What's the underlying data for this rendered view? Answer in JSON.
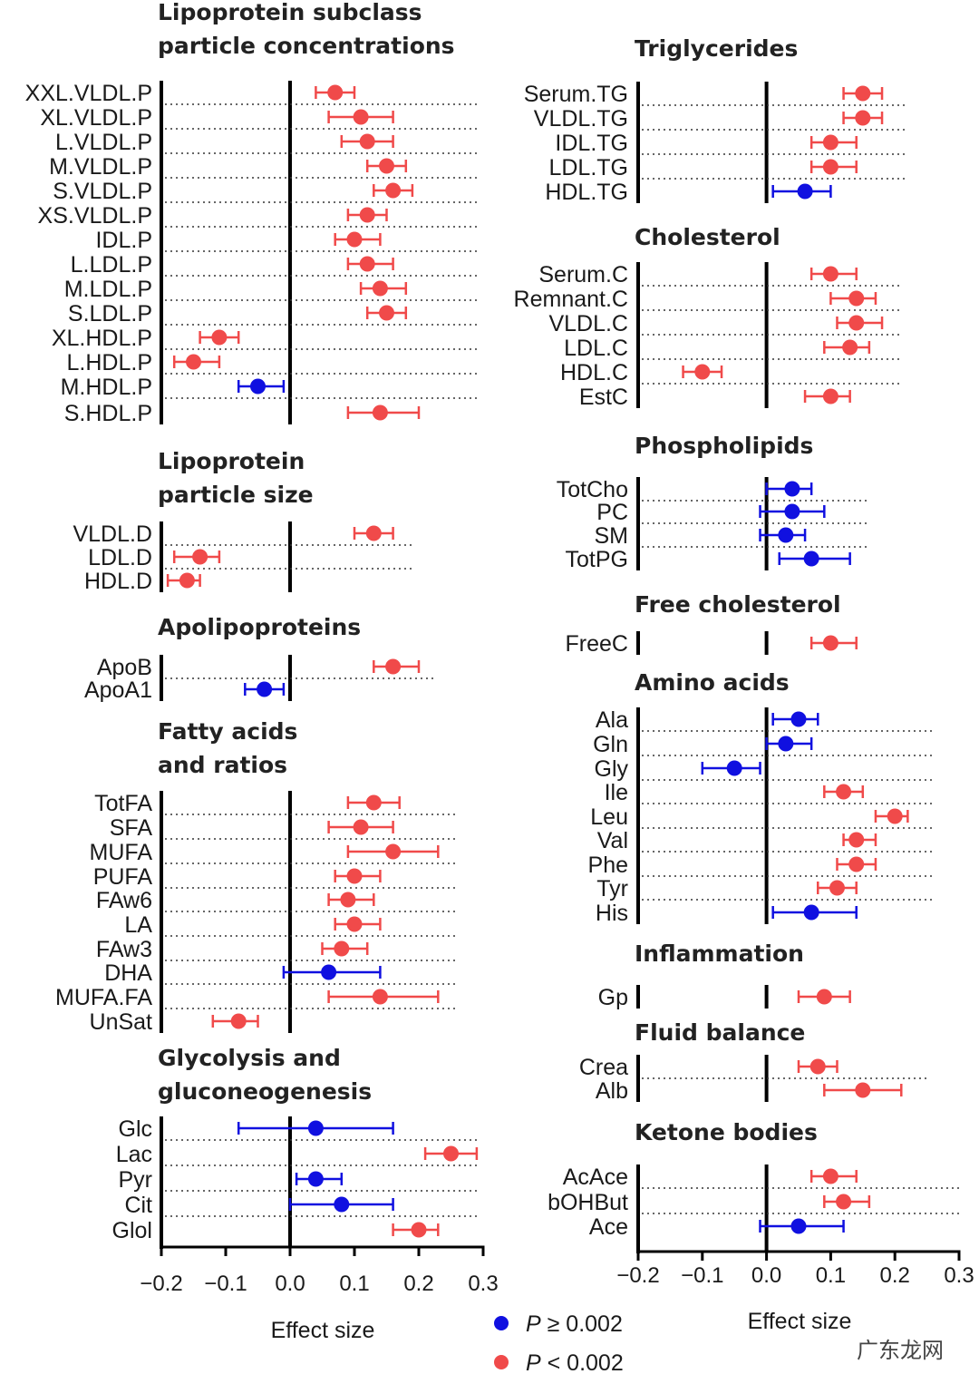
{
  "chart_data": {
    "type": "forest",
    "colors": {
      "not_significant": "#1010e0",
      "significant": "#f04a4a"
    },
    "legend": {
      "placement": "bottom-center",
      "entries": [
        {
          "p_letter": "P",
          "rest": " ≥ 0.002",
          "color": "#1010e0"
        },
        {
          "p_letter": "P",
          "rest": " < 0.002",
          "color": "#f04a4a"
        }
      ]
    },
    "columns": [
      {
        "xlim": [
          -0.2,
          0.3
        ],
        "ticks": [
          "−0.2",
          "−0.1",
          "0.0",
          "0.1",
          "0.2",
          "0.3"
        ],
        "tick_values": [
          -0.2,
          -0.1,
          0.0,
          0.1,
          0.2,
          0.3
        ],
        "xlabel": "Effect size",
        "panels": [
          {
            "title": [
              "Lipoprotein subclass",
              "particle concentrations"
            ],
            "rows": [
              {
                "label": "XXL.VLDL.P",
                "est": 0.07,
                "lo": 0.04,
                "hi": 0.1,
                "sig": true
              },
              {
                "label": "XL.VLDL.P",
                "est": 0.11,
                "lo": 0.06,
                "hi": 0.16,
                "sig": true
              },
              {
                "label": "L.VLDL.P",
                "est": 0.12,
                "lo": 0.08,
                "hi": 0.16,
                "sig": true
              },
              {
                "label": "M.VLDL.P",
                "est": 0.15,
                "lo": 0.12,
                "hi": 0.18,
                "sig": true
              },
              {
                "label": "S.VLDL.P",
                "est": 0.16,
                "lo": 0.13,
                "hi": 0.19,
                "sig": true
              },
              {
                "label": "XS.VLDL.P",
                "est": 0.12,
                "lo": 0.09,
                "hi": 0.15,
                "sig": true
              },
              {
                "label": "IDL.P",
                "est": 0.1,
                "lo": 0.07,
                "hi": 0.14,
                "sig": true
              },
              {
                "label": "L.LDL.P",
                "est": 0.12,
                "lo": 0.09,
                "hi": 0.16,
                "sig": true
              },
              {
                "label": "M.LDL.P",
                "est": 0.14,
                "lo": 0.11,
                "hi": 0.18,
                "sig": true
              },
              {
                "label": "S.LDL.P",
                "est": 0.15,
                "lo": 0.12,
                "hi": 0.18,
                "sig": true
              },
              {
                "label": "XL.HDL.P",
                "est": -0.11,
                "lo": -0.14,
                "hi": -0.08,
                "sig": true
              },
              {
                "label": "L.HDL.P",
                "est": -0.15,
                "lo": -0.18,
                "hi": -0.11,
                "sig": true
              },
              {
                "label": "M.HDL.P",
                "est": -0.05,
                "lo": -0.08,
                "hi": -0.01,
                "sig": false
              },
              {
                "label": "S.HDL.P",
                "est": 0.14,
                "lo": 0.09,
                "hi": 0.2,
                "sig": true
              }
            ]
          },
          {
            "title": [
              "Lipoprotein",
              "particle size"
            ],
            "rows": [
              {
                "label": "VLDL.D",
                "est": 0.13,
                "lo": 0.1,
                "hi": 0.16,
                "sig": true
              },
              {
                "label": "LDL.D",
                "est": -0.14,
                "lo": -0.18,
                "hi": -0.11,
                "sig": true
              },
              {
                "label": "HDL.D",
                "est": -0.16,
                "lo": -0.19,
                "hi": -0.14,
                "sig": true
              }
            ]
          },
          {
            "title": [
              "Apolipoproteins"
            ],
            "rows": [
              {
                "label": "ApoB",
                "est": 0.16,
                "lo": 0.13,
                "hi": 0.2,
                "sig": true
              },
              {
                "label": "ApoA1",
                "est": -0.04,
                "lo": -0.07,
                "hi": -0.01,
                "sig": false
              }
            ]
          },
          {
            "title": [
              "Fatty acids",
              "and ratios"
            ],
            "rows": [
              {
                "label": "TotFA",
                "est": 0.13,
                "lo": 0.09,
                "hi": 0.17,
                "sig": true
              },
              {
                "label": "SFA",
                "est": 0.11,
                "lo": 0.06,
                "hi": 0.16,
                "sig": true
              },
              {
                "label": "MUFA",
                "est": 0.16,
                "lo": 0.09,
                "hi": 0.23,
                "sig": true
              },
              {
                "label": "PUFA",
                "est": 0.1,
                "lo": 0.07,
                "hi": 0.14,
                "sig": true
              },
              {
                "label": "FAw6",
                "est": 0.09,
                "lo": 0.06,
                "hi": 0.13,
                "sig": true
              },
              {
                "label": "LA",
                "est": 0.1,
                "lo": 0.07,
                "hi": 0.14,
                "sig": true
              },
              {
                "label": "FAw3",
                "est": 0.08,
                "lo": 0.05,
                "hi": 0.12,
                "sig": true
              },
              {
                "label": "DHA",
                "est": 0.06,
                "lo": -0.01,
                "hi": 0.14,
                "sig": false
              },
              {
                "label": "MUFA.FA",
                "est": 0.14,
                "lo": 0.06,
                "hi": 0.23,
                "sig": true
              },
              {
                "label": "UnSat",
                "est": -0.08,
                "lo": -0.12,
                "hi": -0.05,
                "sig": true
              }
            ]
          },
          {
            "title": [
              "Glycolysis and",
              "gluconeogenesis"
            ],
            "rows": [
              {
                "label": "Glc",
                "est": 0.04,
                "lo": -0.08,
                "hi": 0.16,
                "sig": false
              },
              {
                "label": "Lac",
                "est": 0.25,
                "lo": 0.21,
                "hi": 0.29,
                "sig": true
              },
              {
                "label": "Pyr",
                "est": 0.04,
                "lo": 0.01,
                "hi": 0.08,
                "sig": false
              },
              {
                "label": "Cit",
                "est": 0.08,
                "lo": 0.0,
                "hi": 0.16,
                "sig": false
              },
              {
                "label": "Glol",
                "est": 0.2,
                "lo": 0.16,
                "hi": 0.23,
                "sig": true
              }
            ]
          }
        ]
      },
      {
        "xlim": [
          -0.2,
          0.3
        ],
        "ticks": [
          "−0.2",
          "−0.1",
          "0.0",
          "0.1",
          "0.2",
          "0.3"
        ],
        "tick_values": [
          -0.2,
          -0.1,
          0.0,
          0.1,
          0.2,
          0.3
        ],
        "xlabel": "Effect size",
        "panels": [
          {
            "title": [
              "Triglycerides"
            ],
            "rows": [
              {
                "label": "Serum.TG",
                "est": 0.15,
                "lo": 0.12,
                "hi": 0.18,
                "sig": true
              },
              {
                "label": "VLDL.TG",
                "est": 0.15,
                "lo": 0.12,
                "hi": 0.18,
                "sig": true
              },
              {
                "label": "IDL.TG",
                "est": 0.1,
                "lo": 0.07,
                "hi": 0.14,
                "sig": true
              },
              {
                "label": "LDL.TG",
                "est": 0.1,
                "lo": 0.07,
                "hi": 0.14,
                "sig": true
              },
              {
                "label": "HDL.TG",
                "est": 0.06,
                "lo": 0.01,
                "hi": 0.1,
                "sig": false
              }
            ]
          },
          {
            "title": [
              "Cholesterol"
            ],
            "rows": [
              {
                "label": "Serum.C",
                "est": 0.1,
                "lo": 0.07,
                "hi": 0.14,
                "sig": true
              },
              {
                "label": "Remnant.C",
                "est": 0.14,
                "lo": 0.1,
                "hi": 0.17,
                "sig": true
              },
              {
                "label": "VLDL.C",
                "est": 0.14,
                "lo": 0.11,
                "hi": 0.18,
                "sig": true
              },
              {
                "label": "LDL.C",
                "est": 0.13,
                "lo": 0.09,
                "hi": 0.16,
                "sig": true
              },
              {
                "label": "HDL.C",
                "est": -0.1,
                "lo": -0.13,
                "hi": -0.07,
                "sig": true
              },
              {
                "label": "EstC",
                "est": 0.1,
                "lo": 0.06,
                "hi": 0.13,
                "sig": true
              }
            ]
          },
          {
            "title": [
              "Phospholipids"
            ],
            "rows": [
              {
                "label": "TotCho",
                "est": 0.04,
                "lo": 0.0,
                "hi": 0.07,
                "sig": false
              },
              {
                "label": "PC",
                "est": 0.04,
                "lo": -0.01,
                "hi": 0.09,
                "sig": false
              },
              {
                "label": "SM",
                "est": 0.03,
                "lo": -0.01,
                "hi": 0.06,
                "sig": false
              },
              {
                "label": "TotPG",
                "est": 0.07,
                "lo": 0.02,
                "hi": 0.13,
                "sig": false
              }
            ]
          },
          {
            "title": [
              "Free cholesterol"
            ],
            "rows": [
              {
                "label": "FreeC",
                "est": 0.1,
                "lo": 0.07,
                "hi": 0.14,
                "sig": true
              }
            ]
          },
          {
            "title": [
              "Amino acids"
            ],
            "rows": [
              {
                "label": "Ala",
                "est": 0.05,
                "lo": 0.01,
                "hi": 0.08,
                "sig": false
              },
              {
                "label": "Gln",
                "est": 0.03,
                "lo": 0.0,
                "hi": 0.07,
                "sig": false
              },
              {
                "label": "Gly",
                "est": -0.05,
                "lo": -0.1,
                "hi": -0.01,
                "sig": false
              },
              {
                "label": "Ile",
                "est": 0.12,
                "lo": 0.09,
                "hi": 0.15,
                "sig": true
              },
              {
                "label": "Leu",
                "est": 0.2,
                "lo": 0.17,
                "hi": 0.22,
                "sig": true
              },
              {
                "label": "Val",
                "est": 0.14,
                "lo": 0.12,
                "hi": 0.17,
                "sig": true
              },
              {
                "label": "Phe",
                "est": 0.14,
                "lo": 0.11,
                "hi": 0.17,
                "sig": true
              },
              {
                "label": "Tyr",
                "est": 0.11,
                "lo": 0.08,
                "hi": 0.14,
                "sig": true
              },
              {
                "label": "His",
                "est": 0.07,
                "lo": 0.01,
                "hi": 0.14,
                "sig": false
              }
            ]
          },
          {
            "title": [
              "Inflammation"
            ],
            "rows": [
              {
                "label": "Gp",
                "est": 0.09,
                "lo": 0.05,
                "hi": 0.13,
                "sig": true
              }
            ]
          },
          {
            "title": [
              "Fluid balance"
            ],
            "rows": [
              {
                "label": "Crea",
                "est": 0.08,
                "lo": 0.05,
                "hi": 0.11,
                "sig": true
              },
              {
                "label": "Alb",
                "est": 0.15,
                "lo": 0.09,
                "hi": 0.21,
                "sig": true
              }
            ]
          },
          {
            "title": [
              "Ketone bodies"
            ],
            "rows": [
              {
                "label": "AcAce",
                "est": 0.1,
                "lo": 0.07,
                "hi": 0.14,
                "sig": true
              },
              {
                "label": "bOHBut",
                "est": 0.12,
                "lo": 0.09,
                "hi": 0.16,
                "sig": true
              },
              {
                "label": "Ace",
                "est": 0.05,
                "lo": -0.01,
                "hi": 0.12,
                "sig": false
              }
            ]
          }
        ]
      }
    ]
  },
  "watermark": "广东龙网"
}
